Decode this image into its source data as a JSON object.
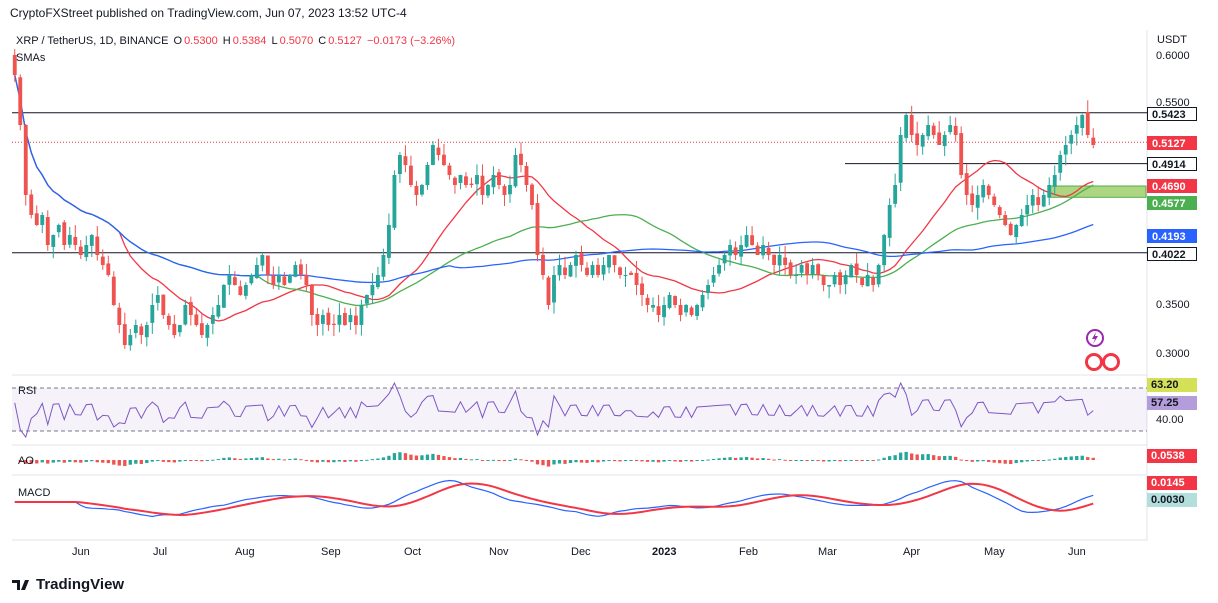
{
  "header": {
    "published": "CryptoFXStreet published on TradingView.com, Jun 07, 2023 13:52 UTC-4"
  },
  "legend": {
    "pair": "XRP / TetherUS, 1D, BINANCE",
    "o_label": "O",
    "o_value": "0.5300",
    "h_label": "H",
    "h_value": "0.5384",
    "l_label": "L",
    "l_value": "0.5070",
    "c_label": "C",
    "c_value": "0.5127",
    "change": "−0.0173 (−3.26%)",
    "sma": "SMAs"
  },
  "currency": "USDT",
  "y_ticks": [
    "0.6000",
    "0.5500",
    "0.3500",
    "0.3000"
  ],
  "x_ticks": [
    "Jun",
    "Jul",
    "Aug",
    "Sep",
    "Oct",
    "Nov",
    "Dec",
    "2023",
    "Feb",
    "Mar",
    "Apr",
    "May",
    "Jun"
  ],
  "price_badges": [
    {
      "label": "0.5423",
      "bg": "#ffffff",
      "fg": "#131722",
      "border": "#131722"
    },
    {
      "label": "0.5127",
      "bg": "#f23645",
      "fg": "#ffffff",
      "border": "#f23645"
    },
    {
      "label": "0.4914",
      "bg": "#ffffff",
      "fg": "#131722",
      "border": "#131722"
    },
    {
      "label": "0.4690",
      "bg": "#f23645",
      "fg": "#ffffff",
      "border": "#f23645"
    },
    {
      "label": "0.4577",
      "bg": "#4caf50",
      "fg": "#ffffff",
      "border": "#4caf50"
    },
    {
      "label": "0.4193",
      "bg": "#2962ff",
      "fg": "#ffffff",
      "border": "#2962ff"
    },
    {
      "label": "0.4022",
      "bg": "#ffffff",
      "fg": "#131722",
      "border": "#131722"
    }
  ],
  "indicators": {
    "rsi": {
      "label": "RSI",
      "value1": "63.20",
      "value2": "57.25",
      "level": "40.00"
    },
    "ao": {
      "label": "AO",
      "value": "0.0538"
    },
    "macd": {
      "label": "MACD",
      "value1": "0.0145",
      "value2": "0.0030"
    }
  },
  "icons": [
    "lightning-icon",
    "us-flag-icon",
    "us-flag-icon"
  ],
  "footer": {
    "brand": "TradingView"
  },
  "colors": {
    "up": "#26a69a",
    "down": "#ef5350",
    "sma50": "#f23645",
    "sma100": "#4caf50",
    "sma200": "#2962ff",
    "rsi": "#7e57c2"
  },
  "chart_data": {
    "type": "candlestick",
    "symbol": "XRP / TetherUS",
    "timeframe": "1D",
    "y_range": [
      0.285,
      0.61
    ],
    "horizontal_levels": [
      0.5423,
      0.4914,
      0.4022
    ],
    "support_zone": [
      0.4577,
      0.469
    ],
    "closes": [
      0.58,
      0.53,
      0.46,
      0.44,
      0.43,
      0.44,
      0.41,
      0.42,
      0.43,
      0.41,
      0.42,
      0.41,
      0.4,
      0.41,
      0.42,
      0.4,
      0.39,
      0.38,
      0.35,
      0.33,
      0.31,
      0.32,
      0.33,
      0.32,
      0.33,
      0.35,
      0.36,
      0.34,
      0.33,
      0.32,
      0.33,
      0.35,
      0.34,
      0.33,
      0.32,
      0.33,
      0.34,
      0.35,
      0.37,
      0.38,
      0.37,
      0.36,
      0.37,
      0.38,
      0.39,
      0.4,
      0.38,
      0.37,
      0.38,
      0.37,
      0.38,
      0.39,
      0.38,
      0.37,
      0.34,
      0.33,
      0.34,
      0.33,
      0.33,
      0.34,
      0.33,
      0.34,
      0.33,
      0.35,
      0.36,
      0.37,
      0.38,
      0.4,
      0.43,
      0.48,
      0.5,
      0.49,
      0.47,
      0.46,
      0.47,
      0.49,
      0.51,
      0.5,
      0.49,
      0.48,
      0.47,
      0.48,
      0.47,
      0.47,
      0.48,
      0.46,
      0.47,
      0.48,
      0.47,
      0.46,
      0.47,
      0.5,
      0.49,
      0.47,
      0.45,
      0.4,
      0.38,
      0.35,
      0.38,
      0.39,
      0.38,
      0.39,
      0.4,
      0.39,
      0.38,
      0.39,
      0.38,
      0.39,
      0.4,
      0.39,
      0.38,
      0.38,
      0.38,
      0.37,
      0.36,
      0.35,
      0.35,
      0.34,
      0.35,
      0.36,
      0.35,
      0.34,
      0.35,
      0.34,
      0.35,
      0.36,
      0.37,
      0.38,
      0.39,
      0.4,
      0.41,
      0.4,
      0.41,
      0.42,
      0.41,
      0.4,
      0.41,
      0.4,
      0.39,
      0.4,
      0.39,
      0.38,
      0.38,
      0.39,
      0.38,
      0.39,
      0.38,
      0.37,
      0.37,
      0.38,
      0.37,
      0.38,
      0.39,
      0.38,
      0.37,
      0.38,
      0.37,
      0.39,
      0.42,
      0.45,
      0.47,
      0.52,
      0.54,
      0.52,
      0.51,
      0.52,
      0.53,
      0.52,
      0.51,
      0.52,
      0.53,
      0.52,
      0.48,
      0.46,
      0.45,
      0.46,
      0.47,
      0.46,
      0.45,
      0.44,
      0.43,
      0.42,
      0.43,
      0.44,
      0.45,
      0.46,
      0.45,
      0.46,
      0.47,
      0.48,
      0.5,
      0.51,
      0.52,
      0.53,
      0.54,
      0.52,
      0.51
    ]
  }
}
